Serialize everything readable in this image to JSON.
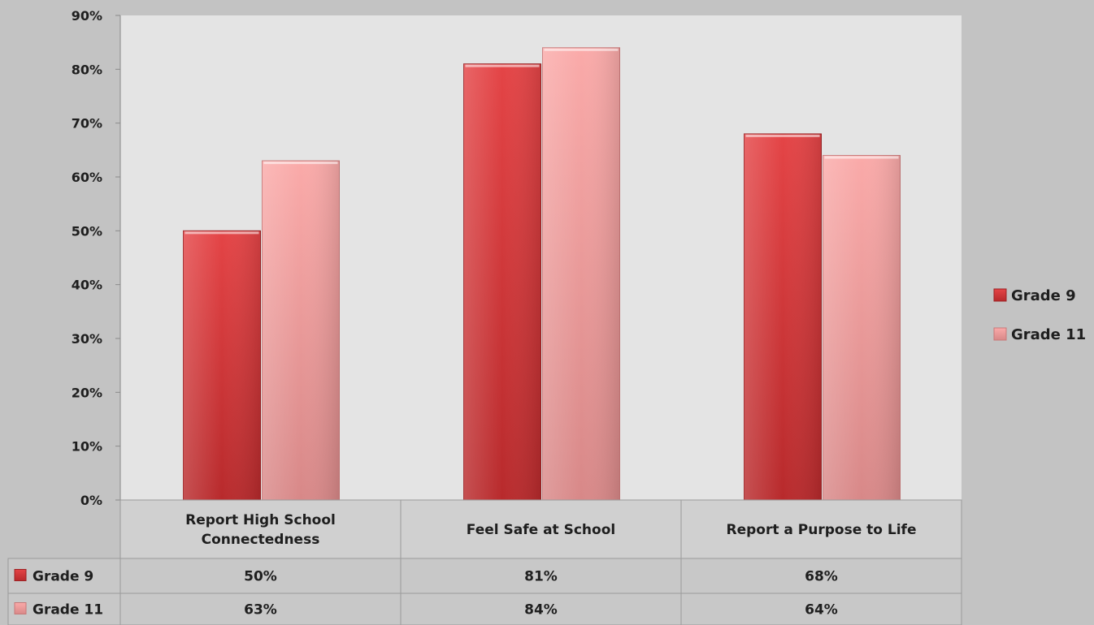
{
  "chart_data": {
    "type": "bar",
    "categories": [
      [
        "Report High School",
        "Connectedness"
      ],
      [
        "Feel Safe at School"
      ],
      [
        "Report a Purpose to Life"
      ]
    ],
    "series": [
      {
        "name": "Grade 9",
        "values": [
          50,
          81,
          68
        ],
        "color": "#d8393a",
        "table_values": [
          "50%",
          "81%",
          "68%"
        ]
      },
      {
        "name": "Grade 11",
        "values": [
          63,
          84,
          64
        ],
        "color": "#f09a9a",
        "table_values": [
          "63%",
          "84%",
          "64%"
        ]
      }
    ],
    "y_ticks": [
      "0%",
      "10%",
      "20%",
      "30%",
      "40%",
      "50%",
      "60%",
      "70%",
      "80%",
      "90%"
    ],
    "ylim": [
      0,
      90
    ],
    "grid": false,
    "legend": "right",
    "data_table": true,
    "colors": {
      "plot_background": "#e4e4e4",
      "page_background": "#c3c3c3"
    }
  }
}
